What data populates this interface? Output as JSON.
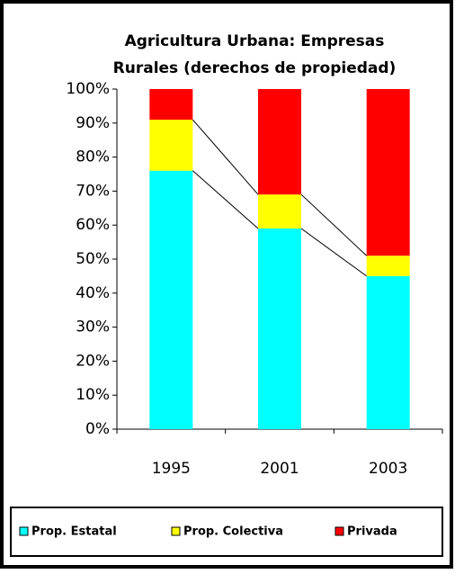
{
  "chart_data": {
    "type": "stacked-bar",
    "title": [
      "Agricultura Urbana: Empresas",
      "Rurales (derechos de propiedad)"
    ],
    "categories": [
      "1995",
      "2001",
      "2003"
    ],
    "series": [
      {
        "name": "Prop. Estatal",
        "color": "#00ffff",
        "values": [
          76,
          59,
          45
        ]
      },
      {
        "name": "Prop. Colectiva",
        "color": "#ffff00",
        "values": [
          15,
          10,
          6
        ]
      },
      {
        "name": "Privada",
        "color": "#ff0000",
        "values": [
          9,
          31,
          49
        ]
      }
    ],
    "ylim": [
      0,
      100
    ],
    "yticks": [
      {
        "value": 0,
        "label": "0%"
      },
      {
        "value": 10,
        "label": "10%"
      },
      {
        "value": 20,
        "label": "20%"
      },
      {
        "value": 30,
        "label": "30%"
      },
      {
        "value": 40,
        "label": "40%"
      },
      {
        "value": 50,
        "label": "50%"
      },
      {
        "value": 60,
        "label": "60%"
      },
      {
        "value": 70,
        "label": "70%"
      },
      {
        "value": 80,
        "label": "80%"
      },
      {
        "value": 90,
        "label": "90%"
      },
      {
        "value": 100,
        "label": "100%"
      }
    ],
    "legend": "bottom"
  }
}
